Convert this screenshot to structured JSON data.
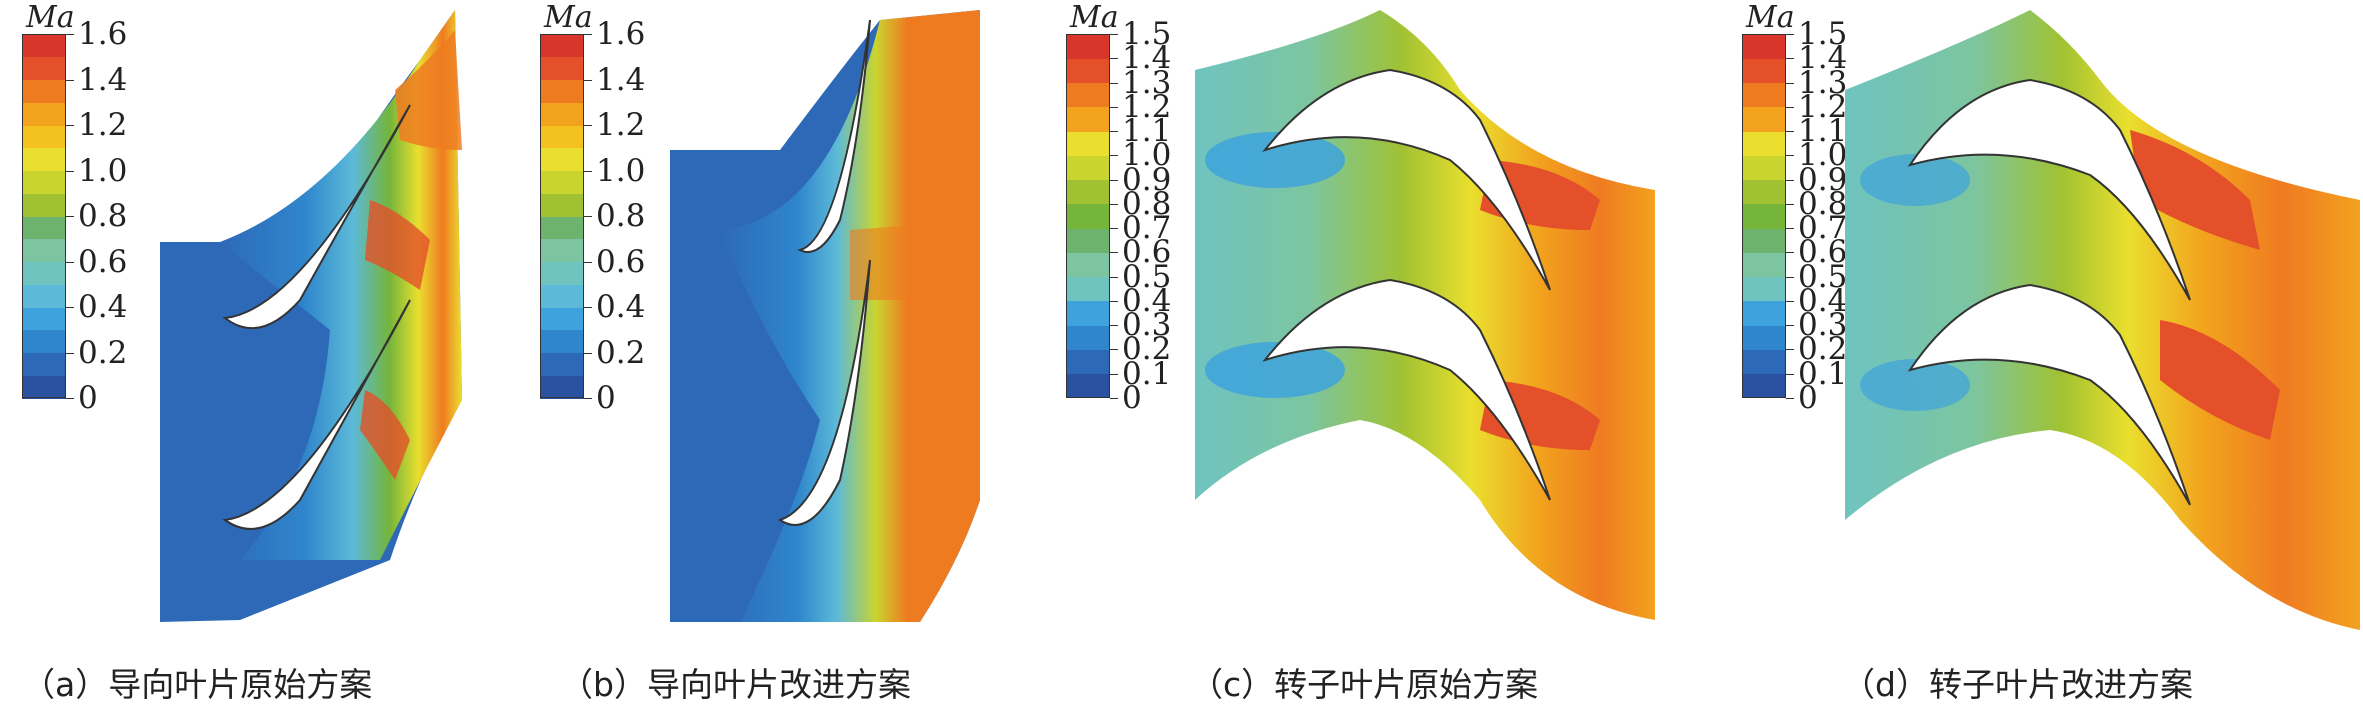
{
  "panels": [
    {
      "id": "a",
      "caption": "（a）导向叶片原始方案",
      "unit_label": "Ma",
      "ticks": [
        "0",
        "0.2",
        "0.4",
        "0.6",
        "0.8",
        "1.0",
        "1.2",
        "1.4",
        "1.6"
      ],
      "levels": 16
    },
    {
      "id": "b",
      "caption": "（b）导向叶片改进方案",
      "unit_label": "Ma",
      "ticks": [
        "0",
        "0.2",
        "0.4",
        "0.6",
        "0.8",
        "1.0",
        "1.2",
        "1.4",
        "1.6"
      ],
      "levels": 16
    },
    {
      "id": "c",
      "caption": "（c）转子叶片原始方案",
      "unit_label": "Ma",
      "ticks": [
        "0",
        "0.1",
        "0.2",
        "0.3",
        "0.4",
        "0.5",
        "0.6",
        "0.7",
        "0.8",
        "0.9",
        "1.0",
        "1.1",
        "1.2",
        "1.3",
        "1.4",
        "1.5"
      ],
      "levels": 15
    },
    {
      "id": "d",
      "caption": "（d）转子叶片改进方案",
      "unit_label": "Ma",
      "ticks": [
        "0",
        "0.1",
        "0.2",
        "0.3",
        "0.4",
        "0.5",
        "0.6",
        "0.7",
        "0.8",
        "0.9",
        "1.0",
        "1.1",
        "1.2",
        "1.3",
        "1.4",
        "1.5"
      ],
      "levels": 15
    }
  ],
  "colormap": [
    "#2a52a0",
    "#2e69b8",
    "#2f86cc",
    "#3ea3dc",
    "#5cbad8",
    "#6fc4c0",
    "#7cc5a0",
    "#6db36e",
    "#74b53a",
    "#a0c232",
    "#cad42e",
    "#eadf2e",
    "#f4c21e",
    "#f2a21d",
    "#ef7b21",
    "#e4502a",
    "#d8362b"
  ]
}
